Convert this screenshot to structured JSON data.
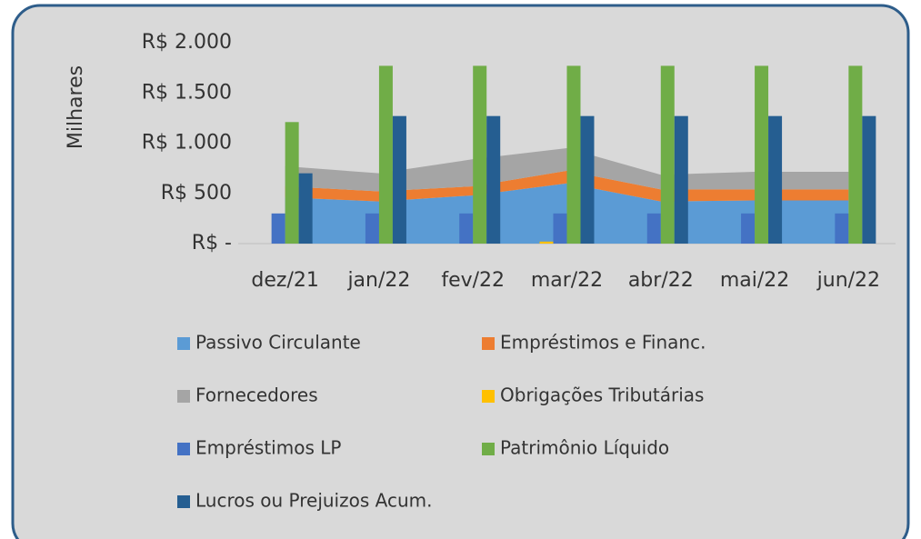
{
  "chart_data": {
    "type": "combo",
    "y_axis_label": "Milhares",
    "categories": [
      "dez/21",
      "jan/22",
      "fev/22",
      "mar/22",
      "abr/22",
      "mai/22",
      "jun/22"
    ],
    "ylim": [
      0,
      2000
    ],
    "yticks": [
      {
        "value": 0,
        "label": "R$ -"
      },
      {
        "value": 500,
        "label": "R$ 500"
      },
      {
        "value": 1000,
        "label": "R$ 1.000"
      },
      {
        "value": 1500,
        "label": "R$ 1.500"
      },
      {
        "value": 2000,
        "label": "R$ 2.000"
      }
    ],
    "series": [
      {
        "name": "Passivo Circulante",
        "kind": "stacked-area",
        "color": "#5b9bd5",
        "values": [
          460,
          420,
          480,
          600,
          420,
          430,
          430
        ]
      },
      {
        "name": "Empréstimos e Financ.",
        "kind": "stacked-area",
        "color": "#ed7d31",
        "values": [
          110,
          100,
          90,
          125,
          120,
          110,
          110
        ]
      },
      {
        "name": "Fornecedores",
        "kind": "stacked-area",
        "color": "#a5a5a5",
        "values": [
          200,
          180,
          270,
          225,
          145,
          175,
          175
        ]
      },
      {
        "name": "Obrigações Tributárias",
        "kind": "column",
        "color": "#ffc000",
        "values": [
          0,
          0,
          0,
          20,
          0,
          0,
          0
        ]
      },
      {
        "name": "Empréstimos LP",
        "kind": "column",
        "color": "#4472c4",
        "values": [
          300,
          300,
          300,
          300,
          300,
          300,
          300
        ]
      },
      {
        "name": "Patrimônio Líquido",
        "kind": "column",
        "color": "#70ad47",
        "values": [
          1210,
          1770,
          1770,
          1770,
          1770,
          1770,
          1770
        ]
      },
      {
        "name": "Lucros ou Prejuizos Acum.",
        "kind": "column",
        "color": "#255e91",
        "values": [
          700,
          1270,
          1270,
          1270,
          1270,
          1270,
          1270
        ]
      }
    ]
  }
}
